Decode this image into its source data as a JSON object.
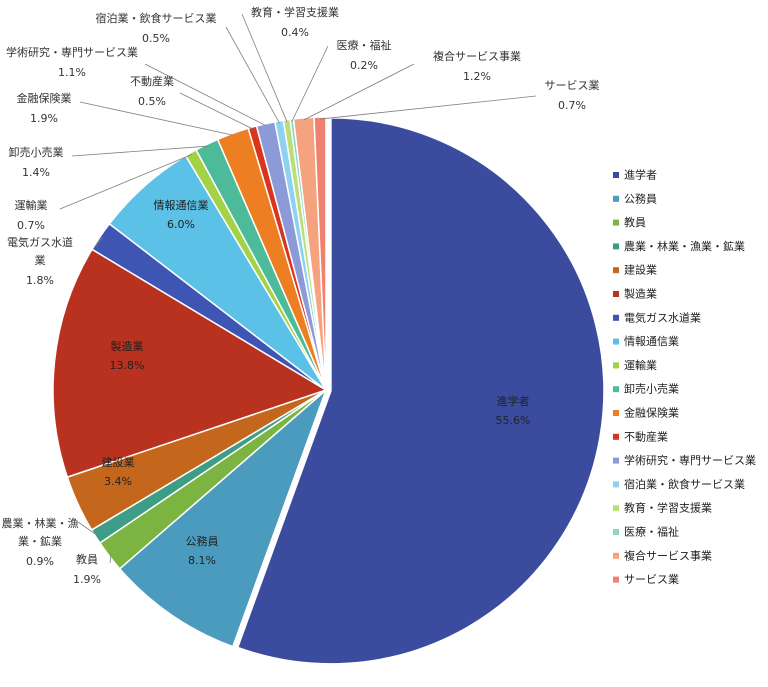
{
  "chart_data": {
    "type": "pie",
    "title": "",
    "legend_position": "right",
    "slices": [
      {
        "label": "進学者",
        "value": 55.6,
        "display": "55.6%",
        "color": "#3B4C9E"
      },
      {
        "label": "公務員",
        "value": 8.1,
        "display": "8.1%",
        "color": "#4A9BBD"
      },
      {
        "label": "教員",
        "value": 1.9,
        "display": "1.9%",
        "color": "#7CB442"
      },
      {
        "label": "農業・林業・漁業・鉱業",
        "value": 0.9,
        "display": "0.9%",
        "color": "#3E9D86"
      },
      {
        "label": "建設業",
        "value": 3.4,
        "display": "3.4%",
        "color": "#C5661D"
      },
      {
        "label": "製造業",
        "value": 13.8,
        "display": "13.8%",
        "color": "#B8321F"
      },
      {
        "label": "電気ガス水道業",
        "value": 1.8,
        "display": "1.8%",
        "color": "#3E55B3"
      },
      {
        "label": "情報通信業",
        "value": 6.0,
        "display": "6.0%",
        "color": "#5BC1E6"
      },
      {
        "label": "運輸業",
        "value": 0.7,
        "display": "0.7%",
        "color": "#A3D246"
      },
      {
        "label": "卸売小売業",
        "value": 1.4,
        "display": "1.4%",
        "color": "#4DBB9A"
      },
      {
        "label": "金融保険業",
        "value": 1.9,
        "display": "1.9%",
        "color": "#EE7E22"
      },
      {
        "label": "不動産業",
        "value": 0.5,
        "display": "0.5%",
        "color": "#D8341E"
      },
      {
        "label": "学術研究・専門サービス業",
        "value": 1.1,
        "display": "1.1%",
        "color": "#8C9AD8"
      },
      {
        "label": "宿泊業・飲食サービス業",
        "value": 0.5,
        "display": "0.5%",
        "color": "#8ED1F1"
      },
      {
        "label": "教育・学習支援業",
        "value": 0.4,
        "display": "0.4%",
        "color": "#B9DF7B"
      },
      {
        "label": "医療・福祉",
        "value": 0.2,
        "display": "0.2%",
        "color": "#8FD6C0"
      },
      {
        "label": "複合サービス事業",
        "value": 1.2,
        "display": "1.2%",
        "color": "#F5A37E"
      },
      {
        "label": "サービス業",
        "value": 0.7,
        "display": "0.7%",
        "color": "#F08070"
      }
    ]
  }
}
